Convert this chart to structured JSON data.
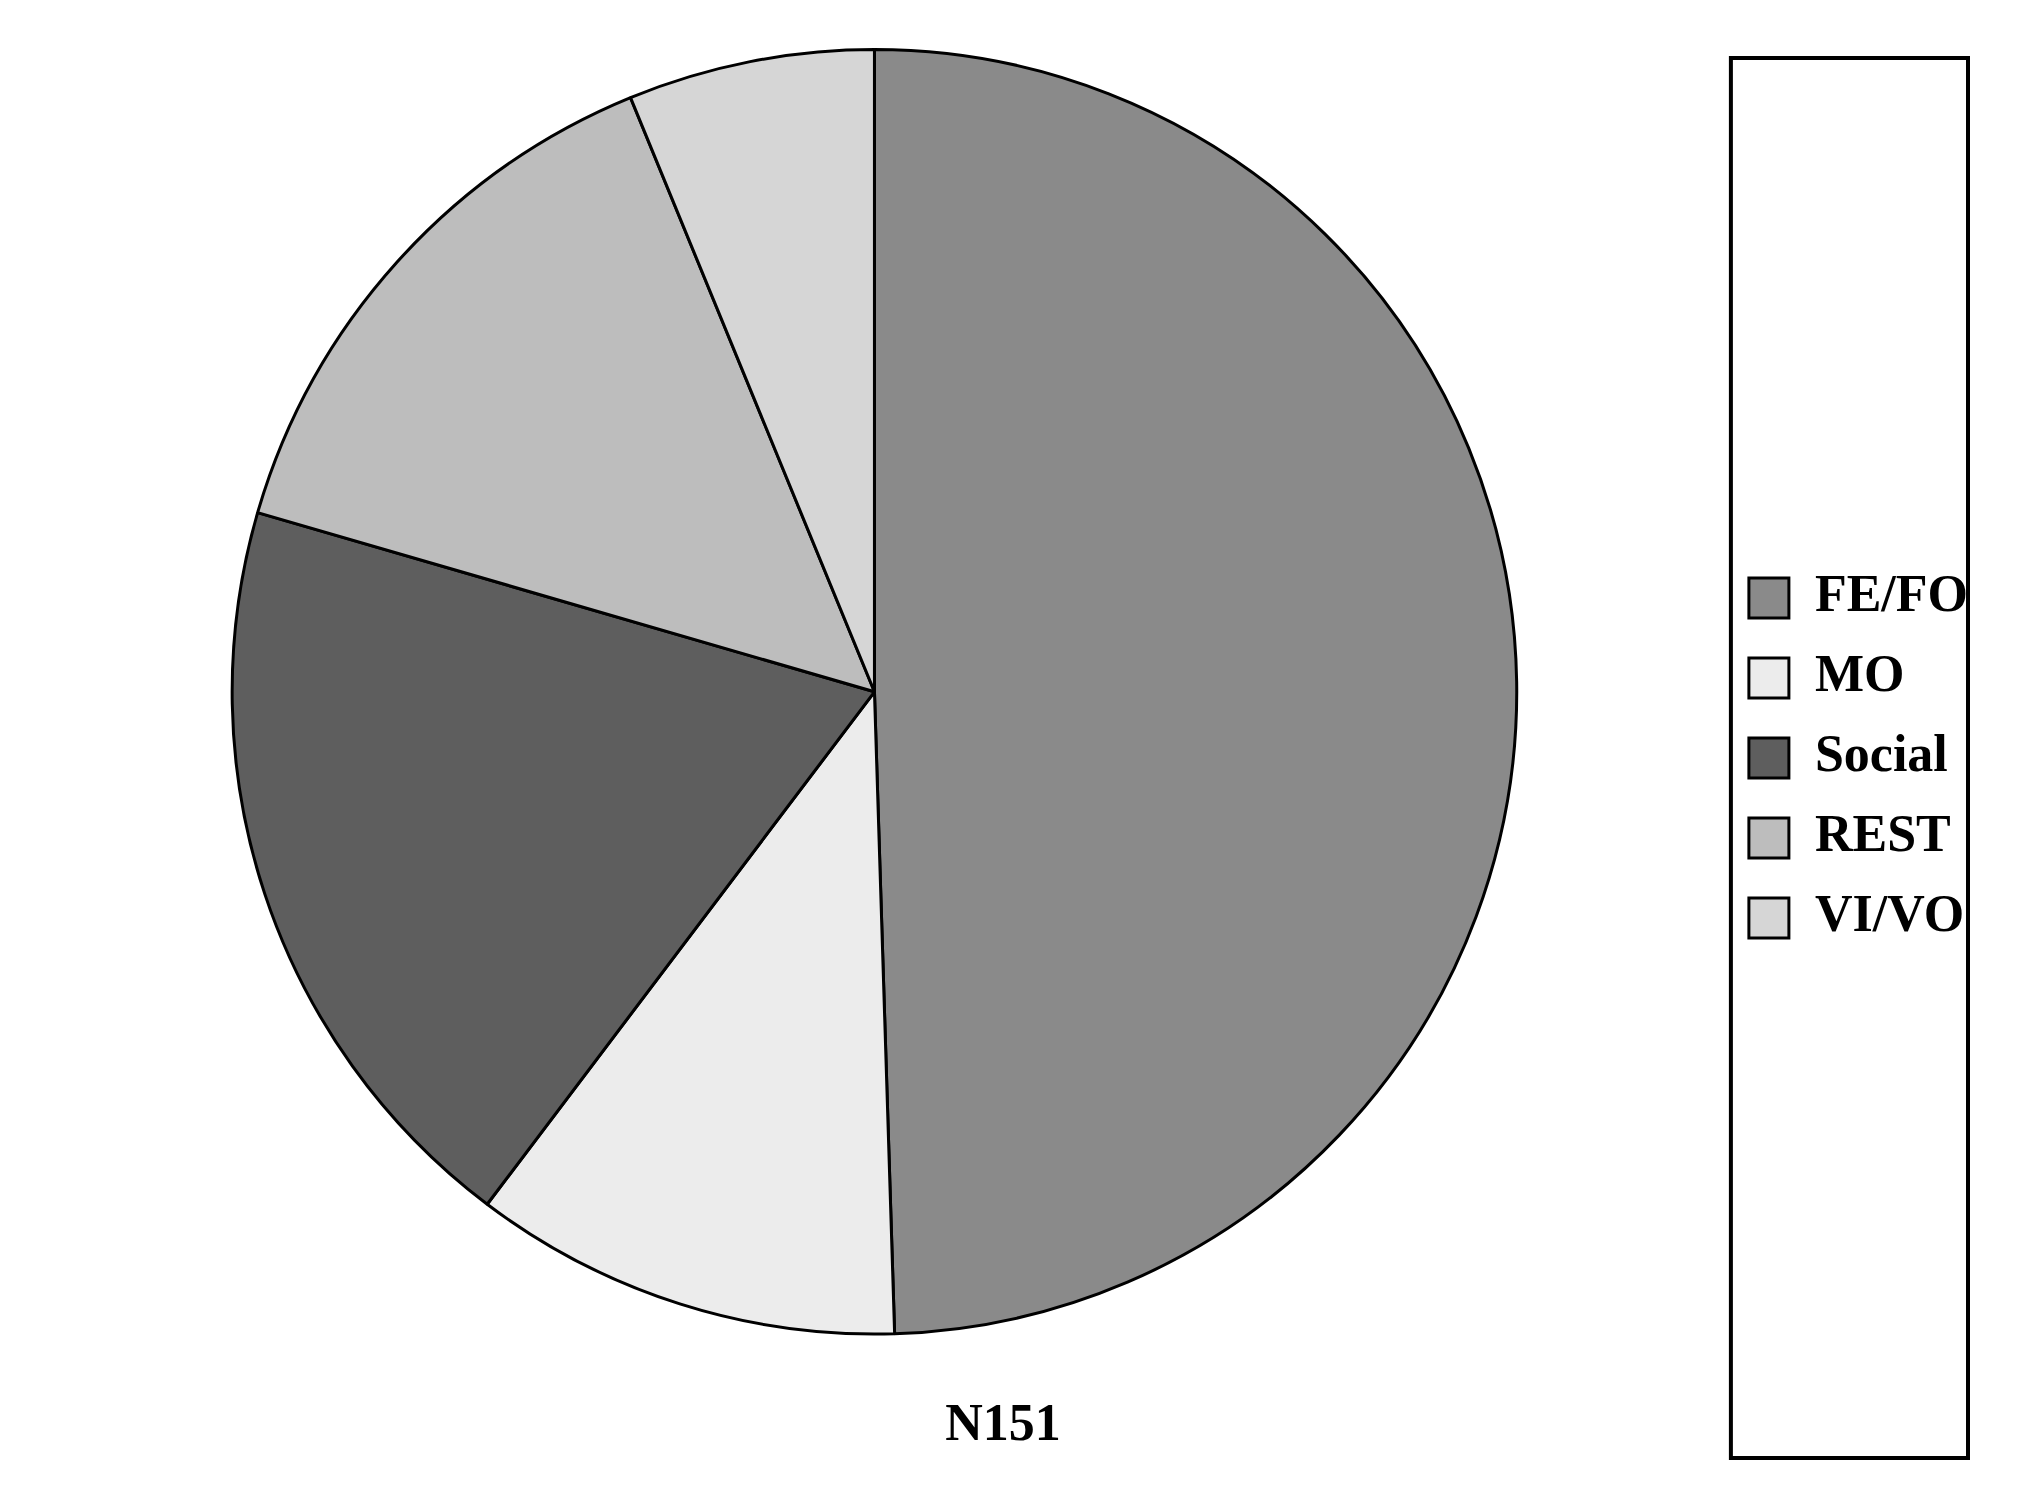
{
  "chart_data": {
    "type": "pie",
    "title": "N151",
    "categories": [
      "FE/FO",
      "MO",
      "Social",
      "REST",
      "VI/VO"
    ],
    "values": [
      49.5,
      10.8,
      19.2,
      14.3,
      6.2
    ],
    "colors": [
      "#8a8a8a",
      "#ececec",
      "#5e5e5e",
      "#bdbdbd",
      "#d6d6d6"
    ],
    "legend": "right"
  }
}
